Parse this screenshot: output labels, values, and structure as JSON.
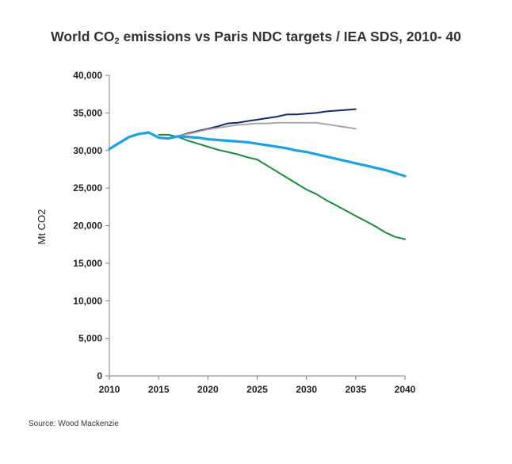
{
  "chart_data": {
    "type": "line",
    "title": {
      "before": "World CO",
      "sub": "2",
      "after": " emissions  vs Paris NDC targets / IEA SDS, 2010- 40"
    },
    "xlabel": "",
    "ylabel": "Mt CO2",
    "xlim": [
      2010,
      2040
    ],
    "ylim": [
      0,
      40000
    ],
    "x_ticks": [
      "2010",
      "2015",
      "2020",
      "2025",
      "2030",
      "2035",
      "2040"
    ],
    "y_ticks": [
      "0",
      "5,000",
      "10,000",
      "15,000",
      "20,000",
      "25,000",
      "30,000",
      "35,000",
      "40,000"
    ],
    "grid": false,
    "legend": false,
    "series": [
      {
        "color": "#0f2d6e",
        "width": 2,
        "points": [
          [
            2017,
            31900
          ],
          [
            2018,
            32300
          ],
          [
            2019,
            32600
          ],
          [
            2020,
            32900
          ],
          [
            2021,
            33200
          ],
          [
            2022,
            33600
          ],
          [
            2023,
            33700
          ],
          [
            2024,
            33900
          ],
          [
            2025,
            34100
          ],
          [
            2026,
            34300
          ],
          [
            2027,
            34500
          ],
          [
            2028,
            34800
          ],
          [
            2029,
            34800
          ],
          [
            2030,
            34900
          ],
          [
            2031,
            35000
          ],
          [
            2032,
            35200
          ],
          [
            2033,
            35300
          ],
          [
            2034,
            35400
          ],
          [
            2035,
            35500
          ]
        ]
      },
      {
        "color": "#a8a8a8",
        "width": 2,
        "points": [
          [
            2017,
            31900
          ],
          [
            2018,
            32200
          ],
          [
            2019,
            32500
          ],
          [
            2020,
            32800
          ],
          [
            2021,
            33000
          ],
          [
            2022,
            33200
          ],
          [
            2023,
            33400
          ],
          [
            2024,
            33500
          ],
          [
            2025,
            33600
          ],
          [
            2026,
            33600
          ],
          [
            2027,
            33700
          ],
          [
            2028,
            33700
          ],
          [
            2029,
            33700
          ],
          [
            2030,
            33700
          ],
          [
            2031,
            33700
          ],
          [
            2032,
            33500
          ],
          [
            2033,
            33300
          ],
          [
            2034,
            33100
          ],
          [
            2035,
            32900
          ]
        ]
      },
      {
        "color": "#1a8a3e",
        "width": 2,
        "points": [
          [
            2015,
            32100
          ],
          [
            2016,
            32100
          ],
          [
            2017,
            31800
          ],
          [
            2018,
            31300
          ],
          [
            2019,
            30900
          ],
          [
            2020,
            30500
          ],
          [
            2021,
            30100
          ],
          [
            2022,
            29800
          ],
          [
            2023,
            29500
          ],
          [
            2024,
            29100
          ],
          [
            2025,
            28800
          ],
          [
            2026,
            28000
          ],
          [
            2027,
            27200
          ],
          [
            2028,
            26400
          ],
          [
            2029,
            25600
          ],
          [
            2030,
            24800
          ],
          [
            2031,
            24200
          ],
          [
            2032,
            23400
          ],
          [
            2033,
            22700
          ],
          [
            2034,
            22000
          ],
          [
            2035,
            21300
          ],
          [
            2036,
            20600
          ],
          [
            2037,
            19900
          ],
          [
            2038,
            19100
          ],
          [
            2039,
            18500
          ],
          [
            2040,
            18200
          ]
        ]
      },
      {
        "color": "#1aa3e0",
        "width": 3.2,
        "points": [
          [
            2010,
            30200
          ],
          [
            2011,
            31000
          ],
          [
            2012,
            31800
          ],
          [
            2013,
            32200
          ],
          [
            2014,
            32400
          ],
          [
            2015,
            31700
          ],
          [
            2016,
            31600
          ],
          [
            2017,
            31900
          ],
          [
            2018,
            31800
          ],
          [
            2019,
            31700
          ],
          [
            2020,
            31500
          ],
          [
            2021,
            31400
          ],
          [
            2022,
            31300
          ],
          [
            2023,
            31200
          ],
          [
            2024,
            31100
          ],
          [
            2025,
            30900
          ],
          [
            2026,
            30700
          ],
          [
            2027,
            30500
          ],
          [
            2028,
            30300
          ],
          [
            2029,
            30000
          ],
          [
            2030,
            29800
          ],
          [
            2031,
            29500
          ],
          [
            2032,
            29200
          ],
          [
            2033,
            28900
          ],
          [
            2034,
            28600
          ],
          [
            2035,
            28300
          ],
          [
            2036,
            28000
          ],
          [
            2037,
            27700
          ],
          [
            2038,
            27400
          ],
          [
            2039,
            27000
          ],
          [
            2040,
            26600
          ]
        ]
      }
    ]
  },
  "source": "Source: Wood Mackenzie"
}
